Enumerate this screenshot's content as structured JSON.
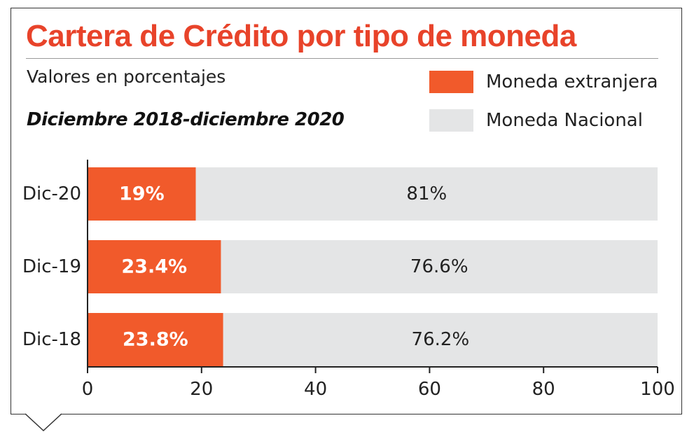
{
  "title": "Cartera de Crédito por tipo de moneda",
  "subtitle": "Valores en porcentajes",
  "period": "Diciembre 2018-diciembre 2020",
  "colors": {
    "title": "#e8432a",
    "foreign": "#f15a2b",
    "national": "#e4e5e6",
    "axis": "#222222"
  },
  "chart_data": {
    "type": "bar",
    "orientation": "horizontal",
    "stacked": true,
    "categories": [
      "Dic-20",
      "Dic-19",
      "Dic-18"
    ],
    "series": [
      {
        "name": "Moneda extranjera",
        "values": [
          19,
          23.4,
          23.8
        ],
        "labels": [
          "19%",
          "23.4%",
          "23.8%"
        ]
      },
      {
        "name": "Moneda Nacional",
        "values": [
          81,
          76.6,
          76.2
        ],
        "labels": [
          "81%",
          "76.6%",
          "76.2%"
        ]
      }
    ],
    "xlim": [
      0,
      100
    ],
    "xticks": [
      0,
      20,
      40,
      60,
      80,
      100
    ],
    "legend": "top-right",
    "grid": false
  }
}
